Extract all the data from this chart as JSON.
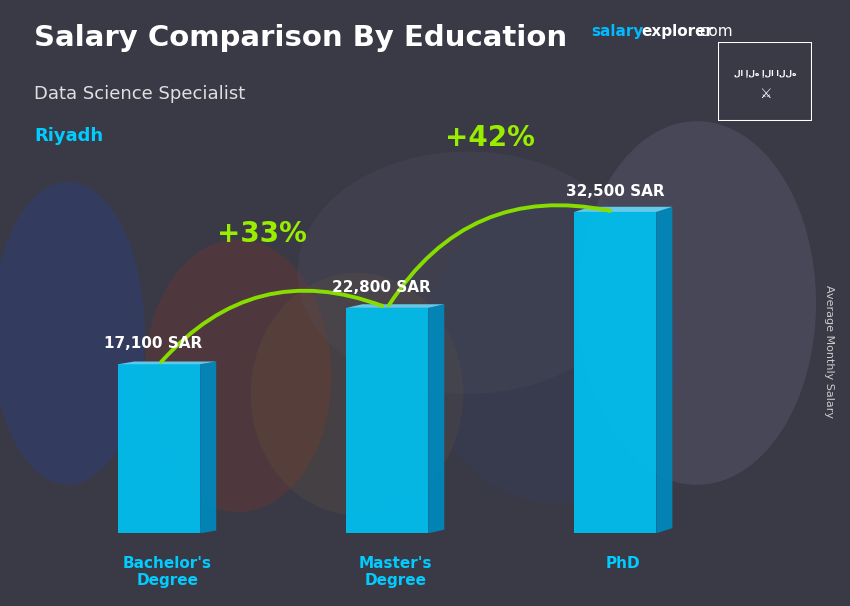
{
  "title": "Salary Comparison By Education",
  "subtitle": "Data Science Specialist",
  "location": "Riyadh",
  "ylabel": "Average Monthly Salary",
  "categories": [
    "Bachelor's\nDegree",
    "Master's\nDegree",
    "PhD"
  ],
  "values": [
    17100,
    22800,
    32500
  ],
  "value_labels": [
    "17,100 SAR",
    "22,800 SAR",
    "32,500 SAR"
  ],
  "pct_labels": [
    "+33%",
    "+42%"
  ],
  "bar_color_face": "#00c0f0",
  "bar_color_right": "#0088bb",
  "bar_color_top": "#66ddff",
  "background_color": "#5a5a6a",
  "title_color": "#ffffff",
  "subtitle_color": "#e0e0e0",
  "location_color": "#00ccff",
  "value_color": "#ffffff",
  "pct_color": "#99ee00",
  "arrow_color": "#88dd00",
  "tick_color": "#00ccff",
  "website_salary_color": "#00bbff",
  "website_explorer_color": "#ffffff",
  "flag_bg": "#2e8b2e",
  "ylim_max": 38000,
  "bar_width": 0.28,
  "positions": [
    0.22,
    1.0,
    1.78
  ],
  "figsize": [
    8.5,
    6.06
  ],
  "dpi": 100
}
